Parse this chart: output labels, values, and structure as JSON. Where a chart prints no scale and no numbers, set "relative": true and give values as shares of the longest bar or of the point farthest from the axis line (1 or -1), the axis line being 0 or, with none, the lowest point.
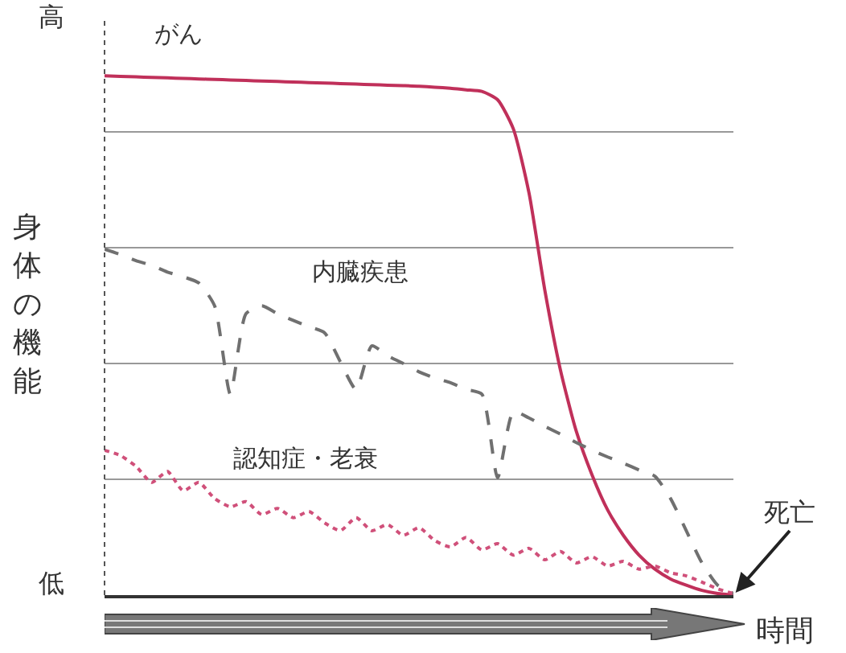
{
  "chart_data": {
    "type": "line",
    "relative": true,
    "xlabel": "時間",
    "ylabel": "身体の機能",
    "grid": "y",
    "legend": false,
    "marker": "none",
    "annotations": [
      "高",
      "低",
      "死亡"
    ],
    "categories": [
      null,
      null,
      null,
      null,
      null,
      null,
      null,
      null,
      null,
      null,
      null,
      null,
      null,
      null,
      null,
      null,
      null,
      null,
      null,
      null,
      null,
      null,
      null,
      null,
      null,
      null,
      null,
      null,
      null,
      null,
      null,
      null,
      null,
      null,
      null,
      null,
      null,
      null,
      null,
      null,
      null
    ],
    "series": [
      {
        "name": "がん",
        "color": "#c0305a",
        "line_style": "solid",
        "values": [
          1.0,
          0.999,
          0.998,
          0.997,
          0.996,
          0.995,
          0.994,
          0.993,
          0.992,
          0.991,
          0.99,
          0.989,
          0.988,
          0.987,
          0.986,
          0.985,
          0.984,
          0.983,
          0.982,
          0.981,
          0.98,
          0.978,
          0.976,
          0.973,
          0.97,
          0.954,
          0.898,
          0.774,
          0.588,
          0.433,
          0.316,
          0.232,
          0.164,
          0.115,
          0.077,
          0.05,
          0.031,
          0.019,
          0.009,
          0.003,
          0
        ]
      },
      {
        "name": "内臓疾患",
        "color": "#707070",
        "line_style": "dashed",
        "values": [
          0.666,
          0.656,
          0.644,
          0.635,
          0.622,
          0.613,
          0.601,
          0.557,
          0.387,
          0.542,
          0.557,
          0.542,
          0.529,
          0.517,
          0.505,
          0.449,
          0.396,
          0.48,
          0.461,
          0.446,
          0.43,
          0.418,
          0.409,
          0.396,
          0.387,
          0.226,
          0.353,
          0.341,
          0.325,
          0.31,
          0.294,
          0.279,
          0.266,
          0.254,
          0.241,
          0.229,
          0.186,
          0.124,
          0.062,
          0.019,
          0.003
        ]
      },
      {
        "name": "認知症・老衰",
        "color": "#d0507a",
        "line_style": "dotted",
        "values": [
          0.279,
          0.269,
          0.248,
          0.217,
          0.238,
          0.201,
          0.217,
          0.186,
          0.17,
          0.18,
          0.155,
          0.167,
          0.149,
          0.161,
          0.139,
          0.124,
          0.149,
          0.124,
          0.136,
          0.115,
          0.13,
          0.105,
          0.093,
          0.111,
          0.087,
          0.099,
          0.077,
          0.09,
          0.068,
          0.084,
          0.062,
          0.074,
          0.056,
          0.065,
          0.05,
          0.056,
          0.043,
          0.037,
          0.025,
          0.012,
          0.003
        ]
      }
    ]
  }
}
